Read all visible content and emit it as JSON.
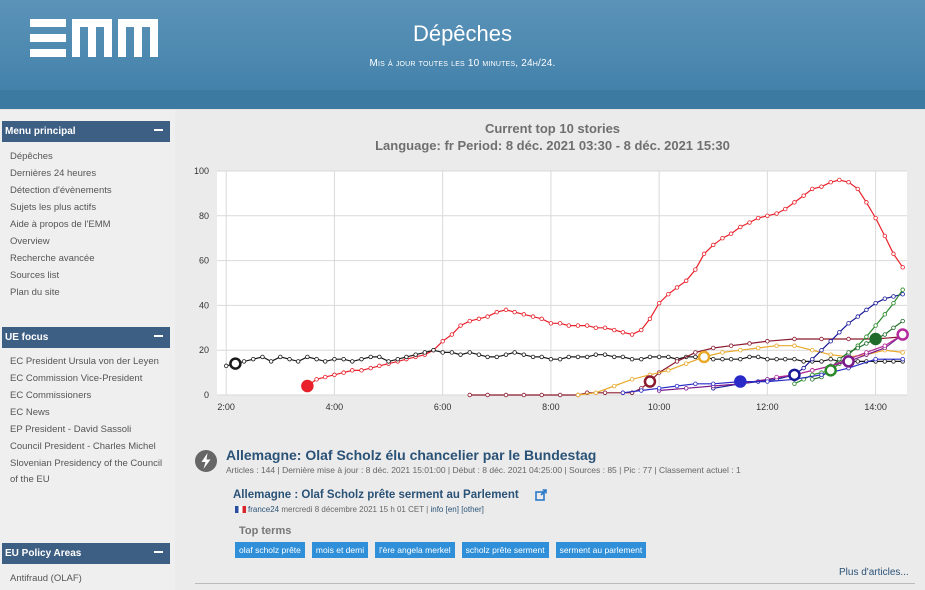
{
  "header": {
    "logo_label": "EMM",
    "title": "Dépêches",
    "subtitle": "Mis à jour toutes les 10 minutes, 24h/24."
  },
  "sidebar": {
    "main_menu": {
      "title": "Menu principal",
      "items": [
        "Dépêches",
        "Dernières 24 heures",
        "Détection d'évènements",
        "Sujets les plus actifs",
        "Aide à propos de l'EMM",
        "Overview",
        "Recherche avancée",
        "Sources list",
        "Plan du site"
      ]
    },
    "eu_focus": {
      "title": "UE focus",
      "items": [
        "EC President Ursula von der Leyen",
        "EC Commission Vice-President",
        "EC Commissioners",
        "EC News",
        "EP President - David Sassoli",
        "Council President - Charles Michel",
        "Slovenian Presidency of the Council of the EU"
      ]
    },
    "eu_policy": {
      "title": "EU Policy Areas",
      "items": [
        "Antifraud (OLAF)"
      ]
    }
  },
  "chart_data": {
    "type": "line",
    "title": "Current top 10 stories",
    "subtitle": "Language: fr Period: 8 déc. 2021 03:30 - 8 déc. 2021 15:30",
    "xlabel": "",
    "ylabel": "",
    "xlim": [
      1.83,
      14.58
    ],
    "ylim": [
      0,
      100
    ],
    "x_ticks": [
      "2:00",
      "4:00",
      "6:00",
      "8:00",
      "10:00",
      "12:00",
      "14:00"
    ],
    "y_ticks": [
      "0",
      "20",
      "40",
      "60",
      "80",
      "100"
    ],
    "grid": true,
    "legend": "none",
    "series": [
      {
        "color": "#e8212b",
        "marker_at": 3.5,
        "points": [
          [
            3.5,
            4
          ],
          [
            3.67,
            7
          ],
          [
            3.83,
            8
          ],
          [
            4.0,
            9
          ],
          [
            4.17,
            10
          ],
          [
            4.33,
            11
          ],
          [
            4.5,
            11
          ],
          [
            4.67,
            12
          ],
          [
            4.83,
            13
          ],
          [
            5.0,
            14
          ],
          [
            5.17,
            15
          ],
          [
            5.33,
            16
          ],
          [
            5.5,
            17
          ],
          [
            5.67,
            18
          ],
          [
            5.83,
            20
          ],
          [
            6.0,
            24
          ],
          [
            6.17,
            27
          ],
          [
            6.33,
            31
          ],
          [
            6.5,
            33
          ],
          [
            6.67,
            34
          ],
          [
            6.83,
            35
          ],
          [
            7.0,
            37
          ],
          [
            7.17,
            38
          ],
          [
            7.33,
            37
          ],
          [
            7.5,
            36
          ],
          [
            7.67,
            35
          ],
          [
            7.83,
            34
          ],
          [
            8.0,
            32
          ],
          [
            8.17,
            32
          ],
          [
            8.33,
            31
          ],
          [
            8.5,
            31
          ],
          [
            8.67,
            31
          ],
          [
            8.83,
            30
          ],
          [
            9.0,
            30
          ],
          [
            9.17,
            29
          ],
          [
            9.33,
            28
          ],
          [
            9.5,
            27
          ],
          [
            9.67,
            29
          ],
          [
            9.83,
            34
          ],
          [
            10.0,
            41
          ],
          [
            10.17,
            45
          ],
          [
            10.33,
            48
          ],
          [
            10.5,
            51
          ],
          [
            10.67,
            56
          ],
          [
            10.83,
            63
          ],
          [
            11.0,
            67
          ],
          [
            11.17,
            70
          ],
          [
            11.33,
            72
          ],
          [
            11.5,
            75
          ],
          [
            11.67,
            77
          ],
          [
            11.83,
            79
          ],
          [
            12.0,
            80
          ],
          [
            12.17,
            81
          ],
          [
            12.33,
            83
          ],
          [
            12.5,
            86
          ],
          [
            12.67,
            89
          ],
          [
            12.83,
            92
          ],
          [
            13.0,
            93
          ],
          [
            13.17,
            95
          ],
          [
            13.33,
            96
          ],
          [
            13.5,
            95
          ],
          [
            13.67,
            92
          ],
          [
            13.83,
            86
          ],
          [
            14.0,
            79
          ],
          [
            14.17,
            71
          ],
          [
            14.33,
            63
          ],
          [
            14.5,
            57
          ]
        ]
      },
      {
        "color": "#1a1a1a",
        "marker_at": 2.17,
        "points": [
          [
            2.0,
            13
          ],
          [
            2.17,
            14
          ],
          [
            2.33,
            15
          ],
          [
            2.5,
            16
          ],
          [
            2.67,
            17
          ],
          [
            2.83,
            15
          ],
          [
            3.0,
            17
          ],
          [
            3.17,
            16
          ],
          [
            3.33,
            15
          ],
          [
            3.5,
            17
          ],
          [
            3.67,
            16
          ],
          [
            3.83,
            15
          ],
          [
            4.0,
            16
          ],
          [
            4.17,
            16
          ],
          [
            4.33,
            15
          ],
          [
            4.5,
            16
          ],
          [
            4.67,
            17
          ],
          [
            4.83,
            17
          ],
          [
            5.0,
            15
          ],
          [
            5.17,
            16
          ],
          [
            5.33,
            17
          ],
          [
            5.5,
            18
          ],
          [
            5.67,
            19
          ],
          [
            5.83,
            20
          ],
          [
            6.0,
            19
          ],
          [
            6.17,
            19
          ],
          [
            6.33,
            18
          ],
          [
            6.5,
            19
          ],
          [
            6.67,
            18
          ],
          [
            6.83,
            17
          ],
          [
            7.0,
            17
          ],
          [
            7.17,
            18
          ],
          [
            7.33,
            19
          ],
          [
            7.5,
            18
          ],
          [
            7.67,
            17
          ],
          [
            7.83,
            17
          ],
          [
            8.0,
            16
          ],
          [
            8.17,
            16
          ],
          [
            8.33,
            17
          ],
          [
            8.5,
            17
          ],
          [
            8.67,
            17
          ],
          [
            8.83,
            18
          ],
          [
            9.0,
            18
          ],
          [
            9.17,
            17
          ],
          [
            9.33,
            17
          ],
          [
            9.5,
            16
          ],
          [
            9.67,
            16
          ],
          [
            9.83,
            17
          ],
          [
            10.0,
            17
          ],
          [
            10.17,
            17
          ],
          [
            10.33,
            16
          ],
          [
            10.5,
            17
          ],
          [
            10.67,
            17
          ],
          [
            10.83,
            17
          ],
          [
            11.0,
            16
          ],
          [
            11.17,
            16
          ],
          [
            11.33,
            16
          ],
          [
            11.5,
            16
          ],
          [
            11.67,
            17
          ],
          [
            11.83,
            17
          ],
          [
            12.0,
            16
          ],
          [
            12.17,
            16
          ],
          [
            12.33,
            16
          ],
          [
            12.5,
            16
          ],
          [
            12.67,
            15
          ],
          [
            12.83,
            15
          ],
          [
            13.0,
            15
          ],
          [
            13.17,
            16
          ],
          [
            13.33,
            15
          ],
          [
            13.5,
            15
          ],
          [
            13.67,
            15
          ],
          [
            13.83,
            15
          ],
          [
            14.0,
            15
          ],
          [
            14.17,
            15
          ],
          [
            14.33,
            15
          ],
          [
            14.5,
            15
          ]
        ]
      },
      {
        "color": "#8a1a2e",
        "marker_at": 9.83,
        "points": [
          [
            6.5,
            0
          ],
          [
            6.83,
            0
          ],
          [
            7.17,
            0
          ],
          [
            7.5,
            0
          ],
          [
            7.83,
            0
          ],
          [
            8.17,
            0
          ],
          [
            8.5,
            0
          ],
          [
            8.67,
            1
          ],
          [
            9.0,
            1
          ],
          [
            9.33,
            1
          ],
          [
            9.5,
            1
          ],
          [
            9.67,
            3
          ],
          [
            9.83,
            6
          ],
          [
            10.0,
            10
          ],
          [
            10.33,
            15
          ],
          [
            10.67,
            19
          ],
          [
            11.0,
            21
          ],
          [
            11.33,
            22
          ],
          [
            11.67,
            23
          ],
          [
            12.0,
            24
          ],
          [
            12.5,
            25
          ],
          [
            13.0,
            25
          ],
          [
            13.5,
            25
          ],
          [
            14.0,
            25
          ],
          [
            14.5,
            26
          ]
        ]
      },
      {
        "color": "#e8a92a",
        "marker_at": 10.83,
        "points": [
          [
            8.5,
            0
          ],
          [
            8.83,
            1
          ],
          [
            9.17,
            4
          ],
          [
            9.5,
            7
          ],
          [
            9.83,
            9
          ],
          [
            10.17,
            11
          ],
          [
            10.5,
            14
          ],
          [
            10.83,
            17
          ],
          [
            11.17,
            19
          ],
          [
            11.5,
            20
          ],
          [
            11.83,
            21
          ],
          [
            12.17,
            22
          ],
          [
            12.5,
            22
          ],
          [
            12.83,
            20
          ],
          [
            13.17,
            18
          ],
          [
            13.5,
            17
          ],
          [
            13.83,
            18
          ],
          [
            14.17,
            20
          ],
          [
            14.5,
            19
          ]
        ]
      },
      {
        "color": "#1a1a99",
        "marker_at": 12.5,
        "points": [
          [
            11.0,
            3
          ],
          [
            11.5,
            5
          ],
          [
            11.83,
            6
          ],
          [
            12.17,
            7
          ],
          [
            12.5,
            9
          ],
          [
            12.67,
            12
          ],
          [
            12.83,
            16
          ],
          [
            13.0,
            20
          ],
          [
            13.17,
            24
          ],
          [
            13.33,
            28
          ],
          [
            13.5,
            32
          ],
          [
            13.67,
            35
          ],
          [
            13.83,
            38
          ],
          [
            14.0,
            41
          ],
          [
            14.17,
            43
          ],
          [
            14.33,
            44
          ],
          [
            14.5,
            45
          ]
        ]
      },
      {
        "color": "#2a8a2a",
        "marker_at": 13.17,
        "points": [
          [
            12.5,
            5
          ],
          [
            12.67,
            7
          ],
          [
            12.83,
            9
          ],
          [
            13.0,
            10
          ],
          [
            13.17,
            11
          ],
          [
            13.33,
            14
          ],
          [
            13.5,
            18
          ],
          [
            13.67,
            22
          ],
          [
            13.83,
            26
          ],
          [
            14.0,
            31
          ],
          [
            14.17,
            36
          ],
          [
            14.33,
            41
          ],
          [
            14.5,
            47
          ]
        ]
      },
      {
        "color": "#1f6b2a",
        "marker_at": 14.0,
        "points": [
          [
            12.83,
            7
          ],
          [
            13.0,
            8
          ],
          [
            13.17,
            12
          ],
          [
            13.33,
            16
          ],
          [
            13.5,
            19
          ],
          [
            13.67,
            21
          ],
          [
            13.83,
            23
          ],
          [
            14.0,
            25
          ],
          [
            14.17,
            27
          ],
          [
            14.33,
            30
          ],
          [
            14.5,
            33
          ]
        ]
      },
      {
        "color": "#7a1a8a",
        "marker_at": 13.5,
        "points": [
          [
            10.0,
            2
          ],
          [
            10.5,
            3
          ],
          [
            11.0,
            4
          ],
          [
            11.5,
            5
          ],
          [
            12.0,
            7
          ],
          [
            12.5,
            9
          ],
          [
            12.83,
            11
          ],
          [
            13.17,
            13
          ],
          [
            13.5,
            15
          ],
          [
            13.83,
            18
          ],
          [
            14.17,
            21
          ],
          [
            14.5,
            27
          ]
        ]
      },
      {
        "color": "#b52a9a",
        "marker_at": 14.5,
        "points": [
          [
            12.17,
            8
          ],
          [
            12.5,
            9
          ],
          [
            12.83,
            11
          ],
          [
            13.17,
            13
          ],
          [
            13.5,
            16
          ],
          [
            13.83,
            19
          ],
          [
            14.17,
            22
          ],
          [
            14.5,
            27
          ]
        ]
      },
      {
        "color": "#2a2ac8",
        "marker_at": 11.5,
        "points": [
          [
            9.33,
            1
          ],
          [
            9.67,
            2
          ],
          [
            10.0,
            3
          ],
          [
            10.33,
            4
          ],
          [
            10.67,
            5
          ],
          [
            11.0,
            5
          ],
          [
            11.5,
            6
          ],
          [
            12.0,
            6
          ],
          [
            12.5,
            7
          ],
          [
            13.0,
            9
          ],
          [
            13.5,
            12
          ],
          [
            14.0,
            16
          ],
          [
            14.5,
            16
          ]
        ]
      }
    ]
  },
  "story": {
    "title": "Allemagne: Olaf Scholz élu chancelier par le Bundestag",
    "meta": "Articles : 144 | Dernière mise à jour : 8 déc. 2021 15:01:00 | Début : 8 déc. 2021 04:25:00 | Sources : 85 | Pic : 77 | Classement actuel : 1",
    "article_title": "Allemagne : Olaf Scholz prête serment au Parlement",
    "article_source": "france24",
    "article_date": " mercredi 8 décembre 2021 15 h 01 CET | ",
    "link_info": "info",
    "link_lang": "[en]",
    "link_other": "[other]",
    "top_terms_label": "Top terms",
    "terms": [
      "olaf scholz prête",
      "mois et demi",
      "l'ère angela merkel",
      "scholz prête serment",
      "serment au parlement"
    ],
    "more_link": "Plus d'articles..."
  }
}
